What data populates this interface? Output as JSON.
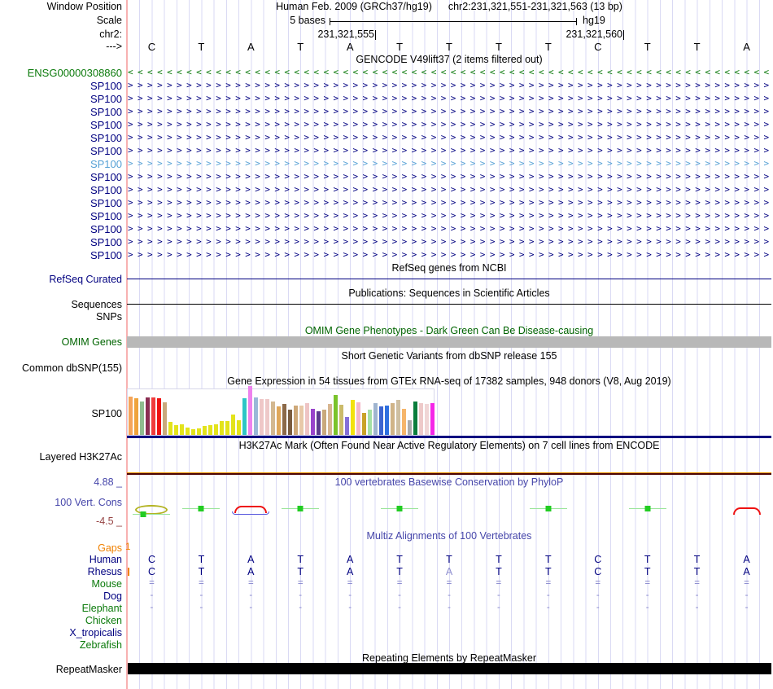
{
  "header": {
    "assembly": "Human Feb. 2009 (GRCh37/hg19)",
    "position": "chr2:231,321,551-231,321,563 (13 bp)",
    "window_position_label": "Window Position",
    "scale_label": "Scale",
    "scale_value": "5 bases",
    "scale_db": "hg19",
    "chrom_label": "chr2:",
    "coord_left": "231,321,555",
    "coord_right": "231,321,560",
    "strand_label": "--->"
  },
  "sequence": {
    "bases": [
      "C",
      "T",
      "A",
      "T",
      "A",
      "T",
      "T",
      "T",
      "T",
      "C",
      "T",
      "T",
      "A"
    ]
  },
  "gencode": {
    "title": "GENCODE V49lift37 (2 items filtered out)",
    "genes": [
      {
        "label": "ENSG00000308860",
        "dir": "<",
        "color": "#0b7a0b"
      },
      {
        "label": "SP100",
        "dir": ">",
        "color": "#000080"
      },
      {
        "label": "SP100",
        "dir": ">",
        "color": "#000080"
      },
      {
        "label": "SP100",
        "dir": ">",
        "color": "#000080"
      },
      {
        "label": "SP100",
        "dir": ">",
        "color": "#000080"
      },
      {
        "label": "SP100",
        "dir": ">",
        "color": "#000080"
      },
      {
        "label": "SP100",
        "dir": ">",
        "color": "#000080"
      },
      {
        "label": "SP100",
        "dir": ">",
        "color": "#55a0d5"
      },
      {
        "label": "SP100",
        "dir": ">",
        "color": "#000080"
      },
      {
        "label": "SP100",
        "dir": ">",
        "color": "#000080"
      },
      {
        "label": "SP100",
        "dir": ">",
        "color": "#000080"
      },
      {
        "label": "SP100",
        "dir": ">",
        "color": "#000080"
      },
      {
        "label": "SP100",
        "dir": ">",
        "color": "#000080"
      },
      {
        "label": "SP100",
        "dir": ">",
        "color": "#000080"
      },
      {
        "label": "SP100",
        "dir": ">",
        "color": "#000080"
      }
    ]
  },
  "refseq": {
    "title": "RefSeq genes from NCBI",
    "label": "RefSeq Curated"
  },
  "publications": {
    "title": "Publications: Sequences in Scientific Articles",
    "label": "Sequences"
  },
  "snps": {
    "label": "SNPs"
  },
  "omim": {
    "title": "OMIM Gene Phenotypes - Dark Green Can Be Disease-causing",
    "label": "OMIM Genes"
  },
  "dbsnp": {
    "title": "Short Genetic Variants from dbSNP release 155",
    "label": "Common dbSNP(155)"
  },
  "gtex": {
    "title": "Gene Expression in 54 tissues from GTEx RNA-seq of 17382 samples, 948 donors (V8, Aug 2019)",
    "label": "SP100",
    "bars": [
      {
        "c": "#f5a55a",
        "h": 0.84
      },
      {
        "c": "#efa33b",
        "h": 0.8
      },
      {
        "c": "#8fbc8f",
        "h": 0.74
      },
      {
        "c": "#8b2d52",
        "h": 0.83
      },
      {
        "c": "#f03c3c",
        "h": 0.83
      },
      {
        "c": "#ee1111",
        "h": 0.8
      },
      {
        "c": "#c9a97c",
        "h": 0.72
      },
      {
        "c": "#e3e31b",
        "h": 0.28
      },
      {
        "c": "#e3e31b",
        "h": 0.22
      },
      {
        "c": "#e3e31b",
        "h": 0.24
      },
      {
        "c": "#e3e31b",
        "h": 0.16
      },
      {
        "c": "#e3e31b",
        "h": 0.13
      },
      {
        "c": "#e3e31b",
        "h": 0.15
      },
      {
        "c": "#e3e31b",
        "h": 0.19
      },
      {
        "c": "#e3e31b",
        "h": 0.21
      },
      {
        "c": "#e3e31b",
        "h": 0.23
      },
      {
        "c": "#e3e31b",
        "h": 0.3
      },
      {
        "c": "#e3e31b",
        "h": 0.31
      },
      {
        "c": "#e3e31b",
        "h": 0.45
      },
      {
        "c": "#e3e31b",
        "h": 0.32
      },
      {
        "c": "#2ec6c6",
        "h": 0.8
      },
      {
        "c": "#ee82ee",
        "h": 1.08
      },
      {
        "c": "#9ab8d8",
        "h": 0.82
      },
      {
        "c": "#efc7c7",
        "h": 0.78
      },
      {
        "c": "#eec9c9",
        "h": 0.78
      },
      {
        "c": "#d3b890",
        "h": 0.74
      },
      {
        "c": "#dfa75a",
        "h": 0.62
      },
      {
        "c": "#8b6948",
        "h": 0.68
      },
      {
        "c": "#7a5c3f",
        "h": 0.55
      },
      {
        "c": "#cda878",
        "h": 0.65
      },
      {
        "c": "#e8c9a9",
        "h": 0.64
      },
      {
        "c": "#eec4c4",
        "h": 0.7
      },
      {
        "c": "#9944cc",
        "h": 0.58
      },
      {
        "c": "#5c3c8e",
        "h": 0.52
      },
      {
        "c": "#c9a97c",
        "h": 0.56
      },
      {
        "c": "#d8b690",
        "h": 0.68
      },
      {
        "c": "#7ac32a",
        "h": 0.88
      },
      {
        "c": "#cbbb6a",
        "h": 0.66
      },
      {
        "c": "#8470d8",
        "h": 0.4
      },
      {
        "c": "#f2e20e",
        "h": 0.76
      },
      {
        "c": "#f4b8c8",
        "h": 0.72
      },
      {
        "c": "#c9a227",
        "h": 0.48
      },
      {
        "c": "#a5e0a5",
        "h": 0.55
      },
      {
        "c": "#9fb4cf",
        "h": 0.7
      },
      {
        "c": "#3c64d0",
        "h": 0.62
      },
      {
        "c": "#2e6fdf",
        "h": 0.64
      },
      {
        "c": "#d0b488",
        "h": 0.7
      },
      {
        "c": "#cebfa2",
        "h": 0.76
      },
      {
        "c": "#f6b56a",
        "h": 0.58
      },
      {
        "c": "#ababab",
        "h": 0.32
      },
      {
        "c": "#0a7d3c",
        "h": 0.74
      },
      {
        "c": "#eec9c9",
        "h": 0.7
      },
      {
        "c": "#f0d6d6",
        "h": 0.68
      },
      {
        "c": "#f527e8",
        "h": 0.7
      }
    ]
  },
  "h3k27ac": {
    "title": "H3K27Ac Mark (Often Found Near Active Regulatory Elements) on 7 cell lines from ENCODE",
    "label": "Layered H3K27Ac"
  },
  "phylop": {
    "title": "100 vertebrates Basewise Conservation by PhyloP",
    "label": "100 Vert. Cons",
    "max_label": "4.88 _",
    "min_label": "-4.5 _",
    "glyphs": [
      "ellipse_square",
      "square",
      "arcs",
      "square",
      "none",
      "square",
      "none",
      "none",
      "square",
      "none",
      "square",
      "none",
      "arc_red"
    ]
  },
  "multiz": {
    "title": "Multiz Alignments of 100 Vertebrates",
    "gaps_marker": "1",
    "rows": [
      {
        "label": "Gaps",
        "lclass": "orange",
        "type": "gaps"
      },
      {
        "label": "Human",
        "lclass": "navy",
        "type": "bases",
        "cells": [
          "C",
          "T",
          "A",
          "T",
          "A",
          "T",
          "T",
          "T",
          "T",
          "C",
          "T",
          "T",
          "A"
        ],
        "muted_index": -1,
        "tick": false
      },
      {
        "label": "Rhesus",
        "lclass": "navy",
        "type": "bases",
        "cells": [
          "C",
          "T",
          "A",
          "T",
          "A",
          "T",
          "A",
          "T",
          "T",
          "C",
          "T",
          "T",
          "A"
        ],
        "muted_index": 6,
        "tick": true
      },
      {
        "label": "Mouse",
        "lclass": "green",
        "type": "fill",
        "fill": "="
      },
      {
        "label": "Dog",
        "lclass": "navy",
        "type": "fill",
        "fill": "-"
      },
      {
        "label": "Elephant",
        "lclass": "green",
        "type": "fill",
        "fill": "-"
      },
      {
        "label": "Chicken",
        "lclass": "green",
        "type": "empty"
      },
      {
        "label": "X_tropicalis",
        "lclass": "navy",
        "type": "empty"
      },
      {
        "label": "Zebrafish",
        "lclass": "green",
        "type": "empty"
      }
    ]
  },
  "repeatmasker": {
    "title": "Repeating Elements by RepeatMasker",
    "label": "RepeatMasker"
  }
}
